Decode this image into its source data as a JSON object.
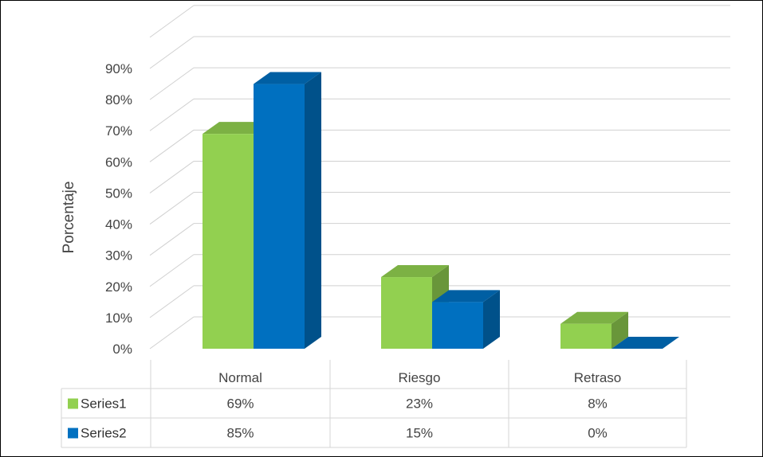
{
  "chart_data": {
    "type": "bar",
    "subtype": "3d-clustered-column-with-data-table",
    "categories": [
      "Normal",
      "Riesgo",
      "Retraso"
    ],
    "series": [
      {
        "name": "Series1",
        "values": [
          69,
          23,
          8
        ],
        "labels": [
          "69%",
          "23%",
          "8%"
        ],
        "color": "#92d050"
      },
      {
        "name": "Series2",
        "values": [
          85,
          15,
          0
        ],
        "labels": [
          "85%",
          "15%",
          "0%"
        ],
        "color": "#0070c0"
      }
    ],
    "title": "",
    "xlabel": "",
    "ylabel": "Porcentaje",
    "ylim": [
      0,
      90
    ],
    "yticks": [
      "0%",
      "10%",
      "20%",
      "30%",
      "40%",
      "50%",
      "60%",
      "70%",
      "80%",
      "90%"
    ],
    "grid": true,
    "legend": "data-table-left"
  }
}
